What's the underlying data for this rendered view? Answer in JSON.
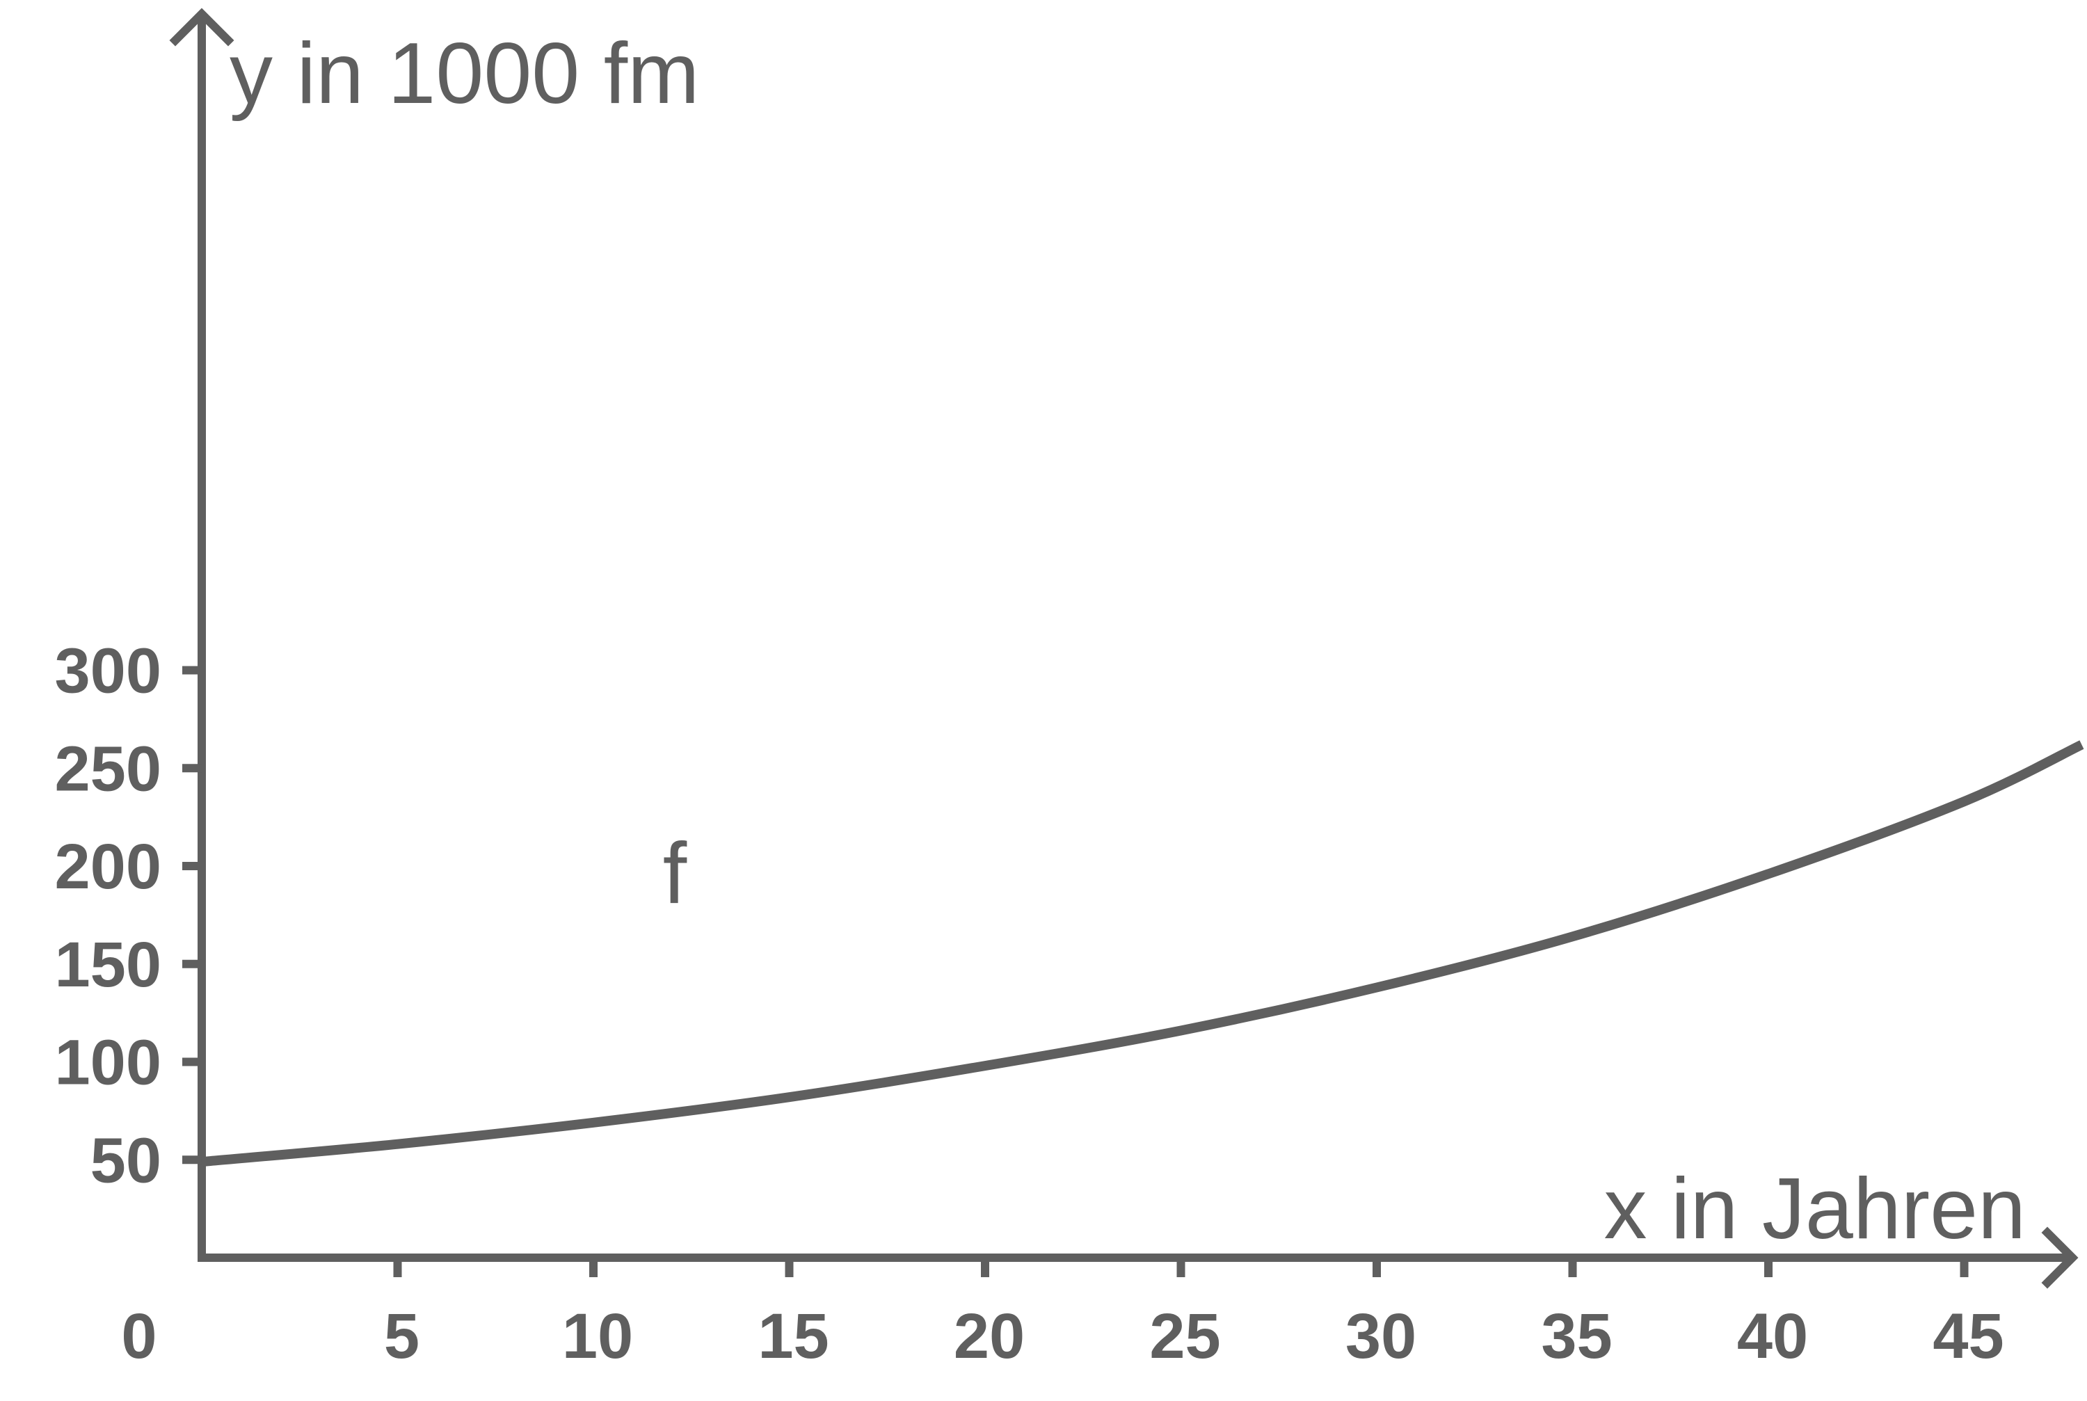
{
  "chart_data": {
    "type": "line",
    "title": "",
    "xlabel": "x in Jahren",
    "ylabel": "y in 1000 fm",
    "origin_label": "0",
    "xlim": [
      0,
      48
    ],
    "ylim": [
      0,
      300
    ],
    "x_ticks": [
      5,
      10,
      15,
      20,
      25,
      30,
      35,
      40,
      45
    ],
    "x_tick_labels": [
      "5",
      "10",
      "15",
      "20",
      "25",
      "30",
      "35",
      "40",
      "45"
    ],
    "y_ticks": [
      50,
      100,
      150,
      200,
      250,
      300
    ],
    "y_tick_labels": [
      "50",
      "100",
      "150",
      "200",
      "250",
      "300"
    ],
    "grid": false,
    "series": [
      {
        "name": "f",
        "color": "#5f5f5f",
        "x": [
          0,
          5,
          10,
          15,
          20,
          25,
          30,
          35,
          40,
          45,
          48
        ],
        "y": [
          49,
          58,
          69,
          82,
          98,
          116,
          138,
          164,
          196,
          233,
          262
        ]
      }
    ]
  }
}
